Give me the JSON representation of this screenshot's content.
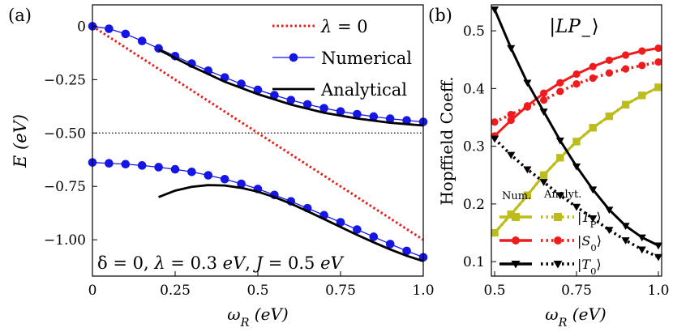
{
  "chart_data": [
    {
      "type": "line",
      "panel_label": "(a)",
      "xlabel_symbol": "ω",
      "xlabel_sub": "R",
      "xlabel_unit": "(eV)",
      "ylabel_symbol": "E",
      "ylabel_unit": "(eV)",
      "xlim": [
        0,
        1.0
      ],
      "ylim": [
        -1.17,
        0.1
      ],
      "xticks": [
        "0",
        "0.25",
        "0.5",
        "0.75",
        "1.0"
      ],
      "yticks": [
        "0",
        "−0.25",
        "−0.50",
        "−0.75",
        "−1.00"
      ],
      "xtick_values": [
        0,
        0.25,
        0.5,
        0.75,
        1.0
      ],
      "ytick_values": [
        0,
        -0.25,
        -0.5,
        -0.75,
        -1.0
      ],
      "reference_line_y": -0.5,
      "legend_position": "top-right",
      "annotation_parts": [
        "δ = 0, ",
        "λ",
        " = 0.3 ",
        "eV",
        ", ",
        "J",
        " = 0.5 ",
        "eV"
      ],
      "series": [
        {
          "name": "λ = 0",
          "style": "dotted",
          "color": "#ee1c1c",
          "x": [
            0,
            1.0
          ],
          "y": [
            0,
            -1.0
          ]
        },
        {
          "name": "Numerical",
          "style": "line-markers",
          "color": "#1515e6",
          "x": [
            0,
            0.05,
            0.1,
            0.15,
            0.2,
            0.25,
            0.3,
            0.35,
            0.4,
            0.45,
            0.5,
            0.55,
            0.6,
            0.65,
            0.7,
            0.75,
            0.8,
            0.85,
            0.9,
            0.95,
            1.0
          ],
          "y": [
            0,
            -0.012,
            -0.036,
            -0.069,
            -0.104,
            -0.14,
            -0.175,
            -0.208,
            -0.24,
            -0.27,
            -0.298,
            -0.323,
            -0.346,
            -0.366,
            -0.384,
            -0.399,
            -0.412,
            -0.423,
            -0.433,
            -0.441,
            -0.448
          ]
        },
        {
          "name": "",
          "style": "line-markers",
          "color": "#1515e6",
          "x": [
            0,
            0.05,
            0.1,
            0.15,
            0.2,
            0.25,
            0.3,
            0.35,
            0.4,
            0.45,
            0.5,
            0.55,
            0.6,
            0.65,
            0.7,
            0.75,
            0.8,
            0.85,
            0.9,
            0.95,
            1.0
          ],
          "y": [
            -0.638,
            -0.642,
            -0.646,
            -0.652,
            -0.66,
            -0.67,
            -0.682,
            -0.698,
            -0.716,
            -0.738,
            -0.762,
            -0.79,
            -0.82,
            -0.852,
            -0.885,
            -0.918,
            -0.952,
            -0.986,
            -1.02,
            -1.052,
            -1.082
          ]
        },
        {
          "name": "Analytical",
          "style": "solid",
          "color": "#000000",
          "x": [
            0.2,
            0.3,
            0.4,
            0.5,
            0.6,
            0.7,
            0.8,
            0.9,
            1.0
          ],
          "y": [
            -0.11,
            -0.188,
            -0.26,
            -0.318,
            -0.367,
            -0.405,
            -0.432,
            -0.452,
            -0.465
          ]
        },
        {
          "name": "",
          "style": "solid",
          "color": "#000000",
          "x": [
            0.2,
            0.25,
            0.3,
            0.35,
            0.4,
            0.45,
            0.5,
            0.55,
            0.6,
            0.65,
            0.7,
            0.75,
            0.8,
            0.85,
            0.9,
            0.95,
            1.0
          ],
          "y": [
            -0.8,
            -0.77,
            -0.752,
            -0.744,
            -0.746,
            -0.757,
            -0.775,
            -0.8,
            -0.831,
            -0.866,
            -0.903,
            -0.94,
            -0.977,
            -1.012,
            -1.045,
            -1.075,
            -1.1
          ]
        }
      ]
    },
    {
      "type": "line",
      "panel_label": "(b)",
      "title": "|LP−⟩",
      "xlabel_symbol": "ω",
      "xlabel_sub": "R",
      "xlabel_unit": "(eV)",
      "ylabel": "Hopffield Coeff.",
      "xlim": [
        0.49,
        1.01
      ],
      "ylim": [
        0.075,
        0.545
      ],
      "xticks": [
        "0.5",
        "0.75",
        "1.0"
      ],
      "yticks": [
        "0.1",
        "0.2",
        "0.3",
        "0.4",
        "0.5"
      ],
      "xtick_values": [
        0.5,
        0.75,
        1.0
      ],
      "ytick_values": [
        0.1,
        0.2,
        0.3,
        0.4,
        0.5
      ],
      "legend_position": "bottom-left",
      "legend_col_headers": [
        "Num.",
        "Analyt."
      ],
      "legend_rows": [
        {
          "ket": "|1P⟩",
          "ket_main": "1",
          "ket_sub": "P",
          "color": "#bcbc1a",
          "marker": "square"
        },
        {
          "ket": "|S0⟩",
          "ket_main": "S",
          "ket_sub": "0",
          "color": "#ee1c1c",
          "marker": "circle"
        },
        {
          "ket": "|T0⟩",
          "ket_main": "T",
          "ket_sub": "0",
          "color": "#000000",
          "marker": "triangle-down"
        }
      ],
      "series": [
        {
          "name": "|1P⟩ Num.",
          "style": "solid",
          "marker": "square",
          "color": "#bcbc1a",
          "x": [
            0.5,
            0.55,
            0.6,
            0.65,
            0.7,
            0.75,
            0.8,
            0.85,
            0.9,
            0.95,
            1.0
          ],
          "y": [
            0.15,
            0.182,
            0.215,
            0.25,
            0.28,
            0.308,
            0.332,
            0.352,
            0.372,
            0.388,
            0.402
          ]
        },
        {
          "name": "|1P⟩ Analyt.",
          "style": "dotted",
          "marker": "square",
          "color": "#bcbc1a",
          "x": [
            0.5,
            0.55,
            0.6,
            0.65,
            0.7,
            0.75,
            0.8,
            0.85,
            0.9,
            0.95,
            1.0
          ],
          "y": [
            0.15,
            0.182,
            0.215,
            0.25,
            0.28,
            0.308,
            0.332,
            0.352,
            0.372,
            0.388,
            0.402
          ]
        },
        {
          "name": "|S0⟩ Num.",
          "style": "solid",
          "marker": "circle",
          "color": "#ee1c1c",
          "x": [
            0.5,
            0.55,
            0.6,
            0.65,
            0.7,
            0.75,
            0.8,
            0.85,
            0.9,
            0.95,
            1.0
          ],
          "y": [
            0.318,
            0.345,
            0.37,
            0.392,
            0.41,
            0.425,
            0.438,
            0.449,
            0.458,
            0.465,
            0.47
          ]
        },
        {
          "name": "|S0⟩ Analyt.",
          "style": "dotted",
          "marker": "circle",
          "color": "#ee1c1c",
          "x": [
            0.5,
            0.55,
            0.6,
            0.65,
            0.7,
            0.75,
            0.8,
            0.85,
            0.9,
            0.95,
            1.0
          ],
          "y": [
            0.342,
            0.355,
            0.368,
            0.38,
            0.395,
            0.408,
            0.418,
            0.427,
            0.434,
            0.44,
            0.446
          ]
        },
        {
          "name": "|T0⟩ Num.",
          "style": "solid",
          "marker": "triangle-down",
          "color": "#000000",
          "x": [
            0.5,
            0.55,
            0.6,
            0.65,
            0.7,
            0.75,
            0.8,
            0.85,
            0.9,
            0.95,
            1.0
          ],
          "y": [
            0.537,
            0.47,
            0.41,
            0.36,
            0.31,
            0.265,
            0.225,
            0.19,
            0.162,
            0.142,
            0.128
          ]
        },
        {
          "name": "|T0⟩ Analyt.",
          "style": "dotted",
          "marker": "triangle-down",
          "color": "#000000",
          "x": [
            0.5,
            0.55,
            0.6,
            0.65,
            0.7,
            0.75,
            0.8,
            0.85,
            0.9,
            0.95,
            1.0
          ],
          "y": [
            0.313,
            0.285,
            0.26,
            0.238,
            0.215,
            0.195,
            0.175,
            0.155,
            0.137,
            0.121,
            0.108
          ]
        }
      ]
    }
  ]
}
